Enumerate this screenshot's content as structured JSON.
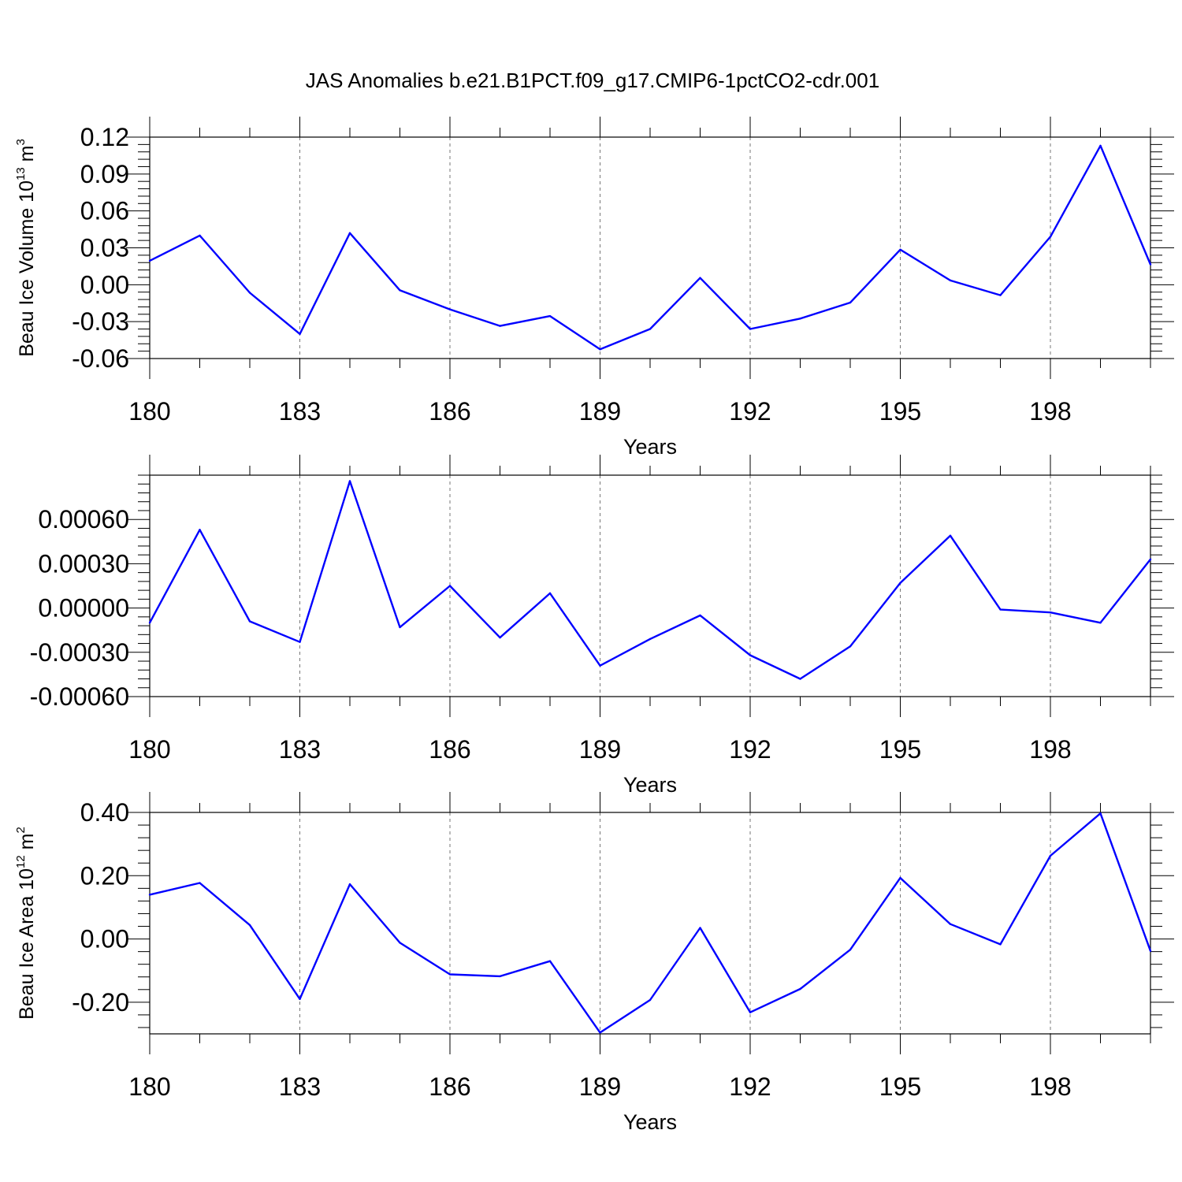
{
  "title": "JAS Anomalies b.e21.B1PCT.f09_g17.CMIP6-1pctCO2-cdr.001",
  "line_color": "#0000ff",
  "chart_data": [
    {
      "type": "line",
      "ylabel": {
        "main": "Beau Ice Volume 10",
        "exp": "13",
        "unit": " m",
        "unit_exp": "3"
      },
      "xlabel": "Years",
      "xlim": [
        180,
        200
      ],
      "ylim": [
        -0.06,
        0.12
      ],
      "yticks": [
        0.12,
        0.09,
        0.06,
        0.03,
        0.0,
        -0.03,
        -0.06
      ],
      "ytick_labels": [
        "0.12",
        "0.09",
        "0.06",
        "0.03",
        "0.00",
        "-0.03",
        "-0.06"
      ],
      "xticks": [
        180,
        183,
        186,
        189,
        192,
        195,
        198
      ],
      "xtick_labels": [
        "180",
        "183",
        "186",
        "189",
        "192",
        "195",
        "198"
      ],
      "x": [
        180,
        181,
        182,
        183,
        184,
        185,
        186,
        187,
        188,
        189,
        190,
        191,
        192,
        193,
        194,
        195,
        196,
        197,
        198,
        199,
        200
      ],
      "values": [
        0.0195,
        0.04,
        -0.0065,
        -0.04,
        0.042,
        -0.0045,
        -0.02,
        -0.0335,
        -0.0255,
        -0.0525,
        -0.036,
        0.0055,
        -0.036,
        -0.0275,
        -0.0145,
        0.0285,
        0.0035,
        -0.0085,
        0.039,
        0.113,
        0.0165
      ]
    },
    {
      "type": "line",
      "ylabel": null,
      "xlabel": "Years",
      "xlim": [
        180,
        200
      ],
      "ylim": [
        -0.0006,
        0.0009
      ],
      "yticks": [
        0.0006,
        0.0003,
        0.0,
        -0.0003,
        -0.0006
      ],
      "ytick_labels": [
        "0.00060",
        "0.00030",
        "0.00000",
        "-0.00030",
        "-0.00060"
      ],
      "xticks": [
        180,
        183,
        186,
        189,
        192,
        195,
        198
      ],
      "xtick_labels": [
        "180",
        "183",
        "186",
        "189",
        "192",
        "195",
        "198"
      ],
      "x": [
        180,
        181,
        182,
        183,
        184,
        185,
        186,
        187,
        188,
        189,
        190,
        191,
        192,
        193,
        194,
        195,
        196,
        197,
        198,
        199,
        200
      ],
      "values": [
        -0.0001,
        0.00053,
        -9e-05,
        -0.00023,
        0.00086,
        -0.00013,
        0.00015,
        -0.0002,
        0.0001,
        -0.00039,
        -0.00021,
        -5e-05,
        -0.00032,
        -0.00048,
        -0.00026,
        0.00017,
        0.00049,
        -1e-05,
        -3e-05,
        -0.0001,
        0.00033
      ]
    },
    {
      "type": "line",
      "ylabel": {
        "main": "Beau Ice Area 10",
        "exp": "12",
        "unit": " m",
        "unit_exp": "2"
      },
      "xlabel": "Years",
      "xlim": [
        180,
        200
      ],
      "ylim": [
        -0.3,
        0.4
      ],
      "yticks": [
        0.4,
        0.2,
        0.0,
        -0.2
      ],
      "ytick_labels": [
        "0.40",
        "0.20",
        "0.00",
        "-0.20"
      ],
      "xticks": [
        180,
        183,
        186,
        189,
        192,
        195,
        198
      ],
      "xtick_labels": [
        "180",
        "183",
        "186",
        "189",
        "192",
        "195",
        "198"
      ],
      "x": [
        180,
        181,
        182,
        183,
        184,
        185,
        186,
        187,
        188,
        189,
        190,
        191,
        192,
        193,
        194,
        195,
        196,
        197,
        198,
        199,
        200
      ],
      "values": [
        0.14,
        0.177,
        0.044,
        -0.19,
        0.173,
        -0.012,
        -0.112,
        -0.118,
        -0.07,
        -0.296,
        -0.193,
        0.035,
        -0.232,
        -0.158,
        -0.034,
        0.193,
        0.047,
        -0.017,
        0.263,
        0.397,
        -0.038
      ]
    }
  ]
}
